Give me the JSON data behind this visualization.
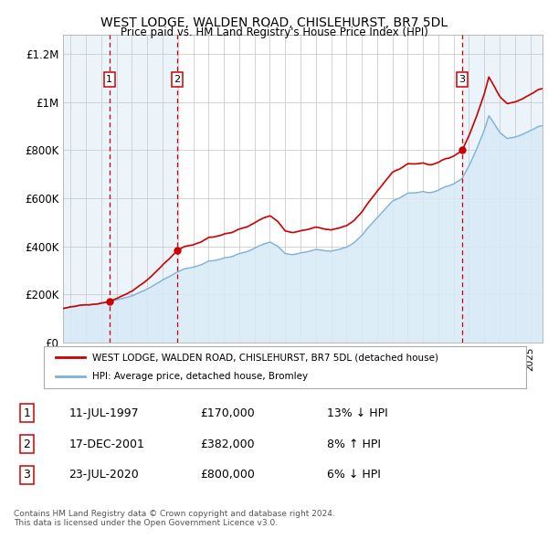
{
  "title": "WEST LODGE, WALDEN ROAD, CHISLEHURST, BR7 5DL",
  "subtitle": "Price paid vs. HM Land Registry's House Price Index (HPI)",
  "background_color": "#ffffff",
  "plot_bg_color": "#ffffff",
  "grid_color": "#cccccc",
  "sale_points": [
    {
      "year": 1997.53,
      "price": 170000,
      "label": "1"
    },
    {
      "year": 2001.96,
      "price": 382000,
      "label": "2"
    },
    {
      "year": 2020.55,
      "price": 800000,
      "label": "3"
    }
  ],
  "sale_color": "#cc0000",
  "hpi_color": "#7fb0d8",
  "hpi_fill_color": "#d8eaf7",
  "vline_color": "#cc0000",
  "shade_color": "#ddeef8",
  "yticks": [
    0,
    200000,
    400000,
    600000,
    800000,
    1000000,
    1200000
  ],
  "ytick_labels": [
    "£0",
    "£200K",
    "£400K",
    "£600K",
    "£800K",
    "£1M",
    "£1.2M"
  ],
  "xmin": 1994.5,
  "xmax": 2025.8,
  "ymin": 0,
  "ymax": 1280000,
  "legend_entries": [
    "WEST LODGE, WALDEN ROAD, CHISLEHURST, BR7 5DL (detached house)",
    "HPI: Average price, detached house, Bromley"
  ],
  "table_rows": [
    {
      "num": "1",
      "date": "11-JUL-1997",
      "price": "£170,000",
      "hpi": "13% ↓ HPI"
    },
    {
      "num": "2",
      "date": "17-DEC-2001",
      "price": "£382,000",
      "hpi": "8% ↑ HPI"
    },
    {
      "num": "3",
      "date": "23-JUL-2020",
      "price": "£800,000",
      "hpi": "6% ↓ HPI"
    }
  ],
  "footnote": "Contains HM Land Registry data © Crown copyright and database right 2024.\nThis data is licensed under the Open Government Licence v3.0."
}
